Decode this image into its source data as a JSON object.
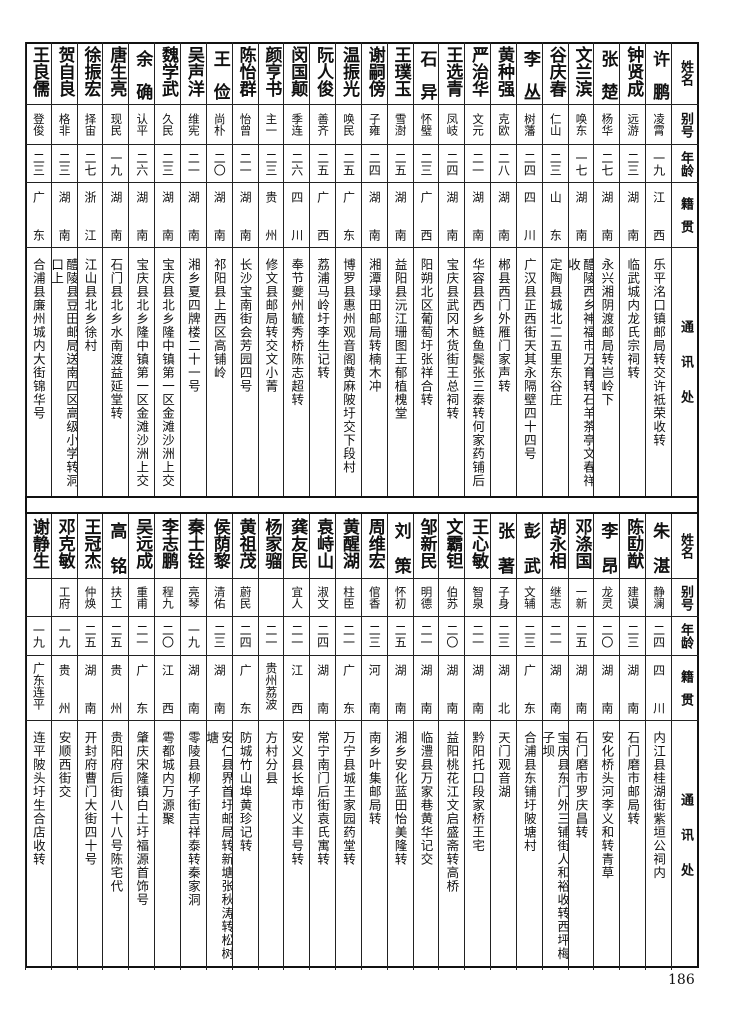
{
  "headers": {
    "name": "姓名",
    "alias": "别号",
    "age": "年龄",
    "native": "籍贯",
    "address": "通讯处"
  },
  "page_number": "186",
  "top_table": [
    {
      "name": "许鹏",
      "alias": "凌霄",
      "age": "一九",
      "native": "江西",
      "address": "乐平洺口镇邮局转交许祗荣收转"
    },
    {
      "name": "钟贤成",
      "alias": "远游",
      "age": "二三",
      "native": "湖南",
      "address": "临武城内龙氏宗祠转"
    },
    {
      "name": "张楚",
      "alias": "杨华",
      "age": "二七",
      "native": "湖南",
      "address": "永兴湘阴渡邮局转岂岭下"
    },
    {
      "name": "文兰滨",
      "alias": "唤东",
      "age": "一七",
      "native": "湖南",
      "address": "醴陵西乡神福市万育转石羊茶亭文春祥收"
    },
    {
      "name": "谷庆春",
      "alias": "仁山",
      "age": "二三",
      "native": "山东",
      "address": "定陶县城北二五里东谷庄"
    },
    {
      "name": "李丛",
      "alias": "树藩",
      "age": "二四",
      "native": "四川",
      "address": "广汉县正西街天其永隔壁四十四号"
    },
    {
      "name": "黄种强",
      "alias": "克欧",
      "age": "二八",
      "native": "湖南",
      "address": "郴县西门外雁门家声转"
    },
    {
      "name": "严治华",
      "alias": "文元",
      "age": "二一",
      "native": "湖南",
      "address": "华容县西乡鲢鱼鬓张三泰转何家药铺后"
    },
    {
      "name": "王选青",
      "alias": "凤岐",
      "age": "二四",
      "native": "湖南",
      "address": "宝庆县武冈木货街王总祠转"
    },
    {
      "name": "石异",
      "alias": "怀璧",
      "age": "二三",
      "native": "广西",
      "address": "阳朔北区葡萄圩张祥合转"
    },
    {
      "name": "王璞玉",
      "alias": "雪澍",
      "age": "二五",
      "native": "湖南",
      "address": "益阳县沅江珊图王郁植槐堂"
    },
    {
      "name": "谢嗣傍",
      "alias": "子雍",
      "age": "二四",
      "native": "湖南",
      "address": "湘潭琭田邮局转楠木冲"
    },
    {
      "name": "温振光",
      "alias": "唤民",
      "age": "二五",
      "native": "广东",
      "address": "博罗县惠州观音阁黄麻陂圩交下段村"
    },
    {
      "name": "阮人俊",
      "alias": "善齐",
      "age": "二五",
      "native": "广西",
      "address": "荔浦马岭圩李生记转"
    },
    {
      "name": "闵国颠",
      "alias": "季连",
      "age": "二六",
      "native": "四川",
      "address": "奉节夔州毓秀桥陈志超转"
    },
    {
      "name": "颜亨书",
      "alias": "主一",
      "age": "二三",
      "native": "贵州",
      "address": "修文县邮局转交文小菁"
    },
    {
      "name": "陈怡群",
      "alias": "怡曾",
      "age": "二一",
      "native": "湖南",
      "address": "长沙宝南街会芳园四号"
    },
    {
      "name": "王俭",
      "alias": "尚朴",
      "age": "二〇",
      "native": "湖南",
      "address": "祁阳县上西区高铺岭"
    },
    {
      "name": "吴声洋",
      "alias": "维宪",
      "age": "二一",
      "native": "湖南",
      "address": "湘乡夏四牌楼二十一号"
    },
    {
      "name": "魏学武",
      "alias": "久民",
      "age": "二三",
      "native": "湖南",
      "address": "宝庆县北乡隆中镇第一区金滩沙洲上交"
    },
    {
      "name": "余确",
      "alias": "认平",
      "age": "二六",
      "native": "湖南",
      "address": "宝庆县北乡隆中镇第一区金滩沙洲上交"
    },
    {
      "name": "唐生亮",
      "alias": "现民",
      "age": "一九",
      "native": "湖南",
      "address": "石门县北乡水南渡益延堂转"
    },
    {
      "name": "徐振宏",
      "alias": "择宙",
      "age": "二七",
      "native": "浙江",
      "address": "江山县北乡徐村"
    },
    {
      "name": "贺自良",
      "alias": "格非",
      "age": "二三",
      "native": "湖南",
      "address": "醴陵县豆田邮局送南四区高级小学转洞口上"
    },
    {
      "name": "王良儒",
      "alias": "登俊",
      "age": "二三",
      "native": "广东",
      "address": "合浦县廉州城内大街锦华号"
    }
  ],
  "bottom_table": [
    {
      "name": "朱湛",
      "alias": "静澜",
      "age": "二四",
      "native": "四川",
      "address": "内江县桂湖街紫垣公祠内"
    },
    {
      "name": "陈劻猷",
      "alias": "建谟",
      "age": "二三",
      "native": "湖南",
      "address": "石门磨市邮局转"
    },
    {
      "name": "李昂",
      "alias": "龙灵",
      "age": "二〇",
      "native": "湖南",
      "address": "安化桥头河李义和转青草"
    },
    {
      "name": "邓涤国",
      "alias": "一新",
      "age": "二五",
      "native": "湖南",
      "address": "石门磨市罗庆昌转"
    },
    {
      "name": "胡永相",
      "alias": "继志",
      "age": "二一",
      "native": "湖南",
      "address": "宝庆县东门外三铺街人和裕收转西坪梅子坝"
    },
    {
      "name": "彭武",
      "alias": "文辅",
      "age": "二三",
      "native": "广东",
      "address": "合浦县东铺圩陂塘村"
    },
    {
      "name": "张著",
      "alias": "子身",
      "age": "二三",
      "native": "湖北",
      "address": "天门观音湖"
    },
    {
      "name": "王心敏",
      "alias": "智泉",
      "age": "二一",
      "native": "湖南",
      "address": "黔阳托口段家桥王宅"
    },
    {
      "name": "文霸钽",
      "alias": "伯苏",
      "age": "二〇",
      "native": "湖南",
      "address": "益阳桃花江文启盛斋转高桥"
    },
    {
      "name": "邹新民",
      "alias": "明德",
      "age": "二一",
      "native": "湖南",
      "address": "临澧县万家巷黄华记交"
    },
    {
      "name": "刘策",
      "alias": "怀初",
      "age": "二五",
      "native": "湖南",
      "address": "湘乡安化蓝田怡美隆转"
    },
    {
      "name": "周维宏",
      "alias": "倌香",
      "age": "二三",
      "native": "河南",
      "address": "南乡叶集邮局转"
    },
    {
      "name": "黄醒湖",
      "alias": "柱臣",
      "age": "二一",
      "native": "广东",
      "address": "万宁县城王家园药堂转"
    },
    {
      "name": "袁峙山",
      "alias": "淑文",
      "age": "二四",
      "native": "湖南",
      "address": "常宁南门后街袁氏寓转"
    },
    {
      "name": "龚友民",
      "alias": "宜人",
      "age": "二一",
      "native": "江西",
      "address": "安义县长埠市义丰号转"
    },
    {
      "name": "杨家骝",
      "alias": "",
      "age": "二一",
      "native": "贵州荔波",
      "address": "方村分县"
    },
    {
      "name": "黄祖茂",
      "alias": "蔚民",
      "age": "二四",
      "native": "广东",
      "address": "防城竹山埠黄珍记转"
    },
    {
      "name": "侯荫黎",
      "alias": "清佑",
      "age": "二三",
      "native": "湖南",
      "address": "安仁县界首圩邮局转新塘张秋涛转松树塘"
    },
    {
      "name": "秦士铨",
      "alias": "亮琴",
      "age": "一九",
      "native": "湖南",
      "address": "零陵县柳子街吉祥泰转秦家洞"
    },
    {
      "name": "李志鹏",
      "alias": "程九",
      "age": "二〇",
      "native": "江西",
      "address": "雩都城内万源聚"
    },
    {
      "name": "吴远成",
      "alias": "重甫",
      "age": "二一",
      "native": "广东",
      "address": "肇庆宋隆镇白土圩福源首饰号"
    },
    {
      "name": "高铭",
      "alias": "扶工",
      "age": "二五",
      "native": "贵州",
      "address": "贵阳府后街八十八号陈宅代"
    },
    {
      "name": "王冠杰",
      "alias": "仲焕",
      "age": "二五",
      "native": "湖南",
      "address": "开封府曹门大街四十号"
    },
    {
      "name": "邓克敏",
      "alias": "工府",
      "age": "一九",
      "native": "贵州",
      "address": "安顺西街交"
    },
    {
      "name": "谢静生",
      "alias": "",
      "age": "一九",
      "native": "广东连平",
      "address": "连平陂头圩生合店收转"
    }
  ]
}
